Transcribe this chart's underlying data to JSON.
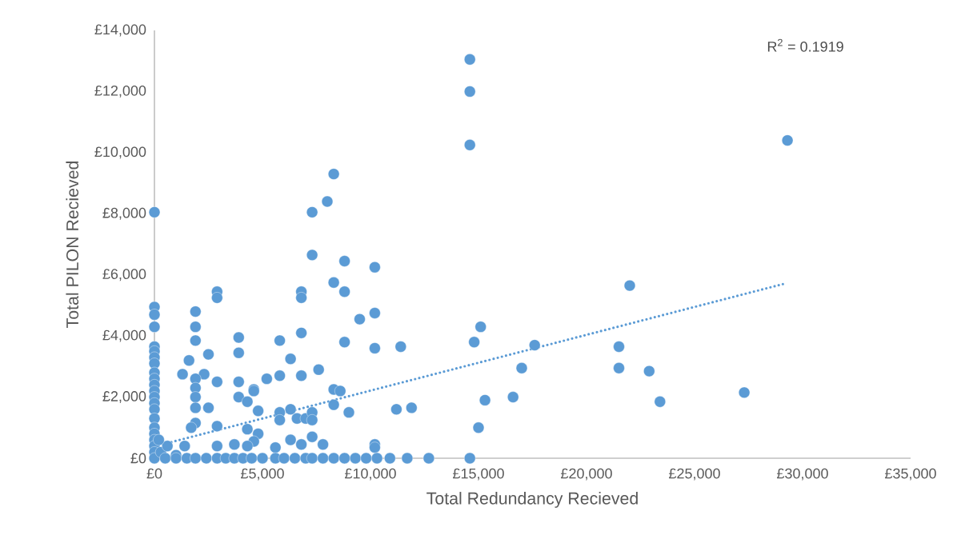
{
  "chart_data": {
    "type": "scatter",
    "xlabel": "Total Redundancy Recieved",
    "ylabel": "Total PILON Recieved",
    "annotations": [
      "R$^{2}$ = 0.1919"
    ],
    "xlim": [
      0,
      35000
    ],
    "ylim": [
      0,
      14000
    ],
    "xticks": [
      {
        "value": 0,
        "label": "£0"
      },
      {
        "value": 5000,
        "label": "£5,000"
      },
      {
        "value": 10000,
        "label": "£10,000"
      },
      {
        "value": 15000,
        "label": "£15,000"
      },
      {
        "value": 20000,
        "label": "£20,000"
      },
      {
        "value": 25000,
        "label": "£25,000"
      },
      {
        "value": 30000,
        "label": "£30,000"
      },
      {
        "value": 35000,
        "label": "£35,000"
      }
    ],
    "yticks": [
      {
        "value": 0,
        "label": "£0"
      },
      {
        "value": 2000,
        "label": "£2,000"
      },
      {
        "value": 4000,
        "label": "£4,000"
      },
      {
        "value": 6000,
        "label": "£6,000"
      },
      {
        "value": 8000,
        "label": "£8,000"
      },
      {
        "value": 10000,
        "label": "£10,000"
      },
      {
        "value": 12000,
        "label": "£12,000"
      },
      {
        "value": 14000,
        "label": "£14,000"
      }
    ],
    "series": [
      {
        "type": "scatter",
        "marker": "circle",
        "color": "#5b9bd5",
        "x": [
          0,
          0,
          0,
          0,
          0,
          0,
          0,
          0,
          0,
          0,
          0,
          0,
          0,
          0,
          0,
          0,
          0,
          0,
          0,
          0,
          0,
          0,
          300,
          600,
          1000,
          200,
          7300,
          8000,
          7300,
          8800,
          10200,
          8300,
          8800,
          2900,
          2900,
          6800,
          6800,
          1900,
          1900,
          1900,
          10200,
          9500,
          3900,
          3900,
          5800,
          6800,
          8800,
          10200,
          2500,
          1600,
          6300,
          1300,
          2300,
          1900,
          1900,
          1900,
          1900,
          1900,
          1700,
          2900,
          3900,
          5800,
          6800,
          7600,
          5200,
          4600,
          4600,
          3900,
          4300,
          4800,
          2500,
          8300,
          8600,
          8300,
          9000,
          5800,
          5800,
          6300,
          6600,
          7000,
          7300,
          7300,
          2900,
          4300,
          4800,
          4600,
          4300,
          6300,
          7300,
          7800,
          6800,
          3700,
          1400,
          2900,
          10200,
          10200,
          5600,
          11400,
          15100,
          14800,
          17600,
          17000,
          16600,
          15300,
          11200,
          11900,
          15000,
          14600,
          14600,
          14600,
          8300,
          29300,
          22000,
          21500,
          21500,
          22900,
          23400,
          27300,
          500,
          1000,
          1500,
          1900,
          2400,
          2900,
          3300,
          3700,
          4100,
          4500,
          5000,
          5600,
          6000,
          6500,
          7000,
          7300,
          7800,
          8300,
          8800,
          9300,
          9800,
          10300,
          10900,
          11700,
          12700,
          14600
        ],
        "values": [
          8050,
          4950,
          4700,
          4300,
          3650,
          3500,
          3300,
          3100,
          2800,
          2600,
          2400,
          2200,
          2000,
          1800,
          1600,
          1300,
          1000,
          800,
          600,
          400,
          200,
          0,
          200,
          400,
          100,
          600,
          8050,
          8400,
          6650,
          6450,
          6250,
          5750,
          5450,
          5450,
          5250,
          5450,
          5250,
          4800,
          4300,
          3850,
          4750,
          4550,
          3950,
          3450,
          3850,
          4100,
          3800,
          3600,
          3400,
          3200,
          3250,
          2750,
          2750,
          2600,
          2300,
          2000,
          1650,
          1150,
          1000,
          2500,
          2500,
          2700,
          2700,
          2900,
          2600,
          2250,
          2200,
          2000,
          1850,
          1550,
          1650,
          2250,
          2200,
          1750,
          1500,
          1500,
          1250,
          1600,
          1300,
          1300,
          1500,
          1250,
          1050,
          950,
          800,
          550,
          400,
          600,
          700,
          450,
          450,
          450,
          400,
          400,
          450,
          350,
          350,
          3650,
          4300,
          3800,
          3700,
          2950,
          2000,
          1900,
          1600,
          1650,
          1000,
          13050,
          12000,
          10250,
          9300,
          10400,
          5650,
          3650,
          2950,
          2850,
          1850,
          2150,
          0,
          0,
          0,
          0,
          0,
          0,
          0,
          0,
          0,
          0,
          0,
          0,
          0,
          0,
          0,
          0,
          0,
          0,
          0,
          0,
          0,
          0,
          0,
          0,
          0,
          0
        ]
      },
      {
        "type": "line",
        "color": "#5b9bd5",
        "line_style": "dotted",
        "marker": "none",
        "x": [
          400,
          29100
        ],
        "values": [
          460,
          5700
        ]
      }
    ]
  }
}
